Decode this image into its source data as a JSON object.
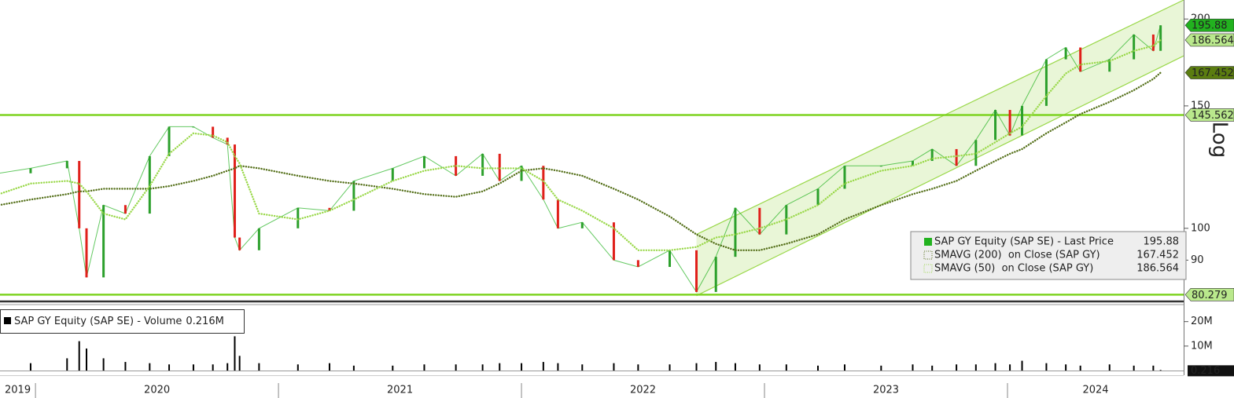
{
  "chart_data": [
    {
      "type": "line",
      "log_scale": true,
      "grid": false,
      "legend": "lower right",
      "x": [
        2019.85,
        2019.98,
        2020.13,
        2020.18,
        2020.21,
        2020.28,
        2020.37,
        2020.47,
        2020.55,
        2020.65,
        2020.73,
        2020.79,
        2020.82,
        2020.84,
        2020.92,
        2021.08,
        2021.21,
        2021.31,
        2021.47,
        2021.6,
        2021.73,
        2021.84,
        2021.91,
        2022.0,
        2022.09,
        2022.15,
        2022.25,
        2022.38,
        2022.48,
        2022.61,
        2022.72,
        2022.8,
        2022.88,
        2022.98,
        2023.09,
        2023.22,
        2023.33,
        2023.48,
        2023.61,
        2023.69,
        2023.79,
        2023.87,
        2023.95,
        2024.01,
        2024.06,
        2024.16,
        2024.24,
        2024.3,
        2024.42,
        2024.52,
        2024.6,
        2024.63
      ],
      "xlim": [
        2019.854,
        2024.725
      ],
      "ylim": [
        78.7,
        213
      ],
      "yticks": [
        90,
        100,
        150,
        200
      ],
      "scale_label": "Log",
      "series": [
        {
          "name": "SAP GY Equity (SAP SE) - Last Price",
          "color": "#22b21f",
          "up_color": "#2ca02c",
          "down_color": "#e0201b",
          "tag_color": "#22b21f",
          "tag_text": "#000000",
          "values": [
            120,
            122,
            125,
            100,
            85,
            108,
            105,
            127,
            140,
            140,
            135,
            132,
            97,
            93,
            100,
            107,
            106,
            117,
            122,
            127,
            119,
            128,
            117,
            123,
            110,
            100,
            102,
            90,
            88,
            93,
            81,
            91,
            107,
            98,
            108,
            114,
            123,
            123,
            125,
            130,
            123,
            134,
            148,
            136,
            150,
            175,
            182,
            168,
            175,
            190,
            180,
            195.88
          ]
        },
        {
          "name": "SMAVG (200)  on Close (SAP GY)",
          "color": "#55701a",
          "style": "dotted",
          "tag_color": "#5b7d10",
          "tag_text": "#ffffff",
          "values": [
            108,
            110,
            112,
            113,
            113,
            114,
            114,
            114,
            115,
            117,
            119,
            121,
            122,
            123,
            122,
            119,
            117,
            116,
            114,
            112,
            111,
            113,
            116,
            121,
            122,
            121,
            119,
            114,
            110,
            104,
            98,
            95,
            93,
            93,
            95,
            98,
            103,
            108,
            112,
            114,
            117,
            121,
            125,
            128,
            130,
            137,
            142,
            146,
            152,
            158,
            164,
            167.452
          ]
        },
        {
          "name": "SMAVG (50)  on Close (SAP GY)",
          "color": "#9ad84a",
          "style": "dotted",
          "tag_color": "#b9e88c",
          "tag_text": "#000000",
          "values": [
            112,
            116,
            117,
            116,
            113,
            105,
            103,
            115,
            128,
            137,
            136,
            133,
            127,
            124,
            105,
            103,
            106,
            110,
            117,
            121,
            123,
            122,
            122,
            122,
            117,
            110,
            106,
            100,
            93,
            93,
            94,
            97,
            98,
            100,
            103,
            108,
            116,
            121,
            123,
            126,
            127,
            128,
            133,
            137,
            140,
            155,
            167,
            172,
            174,
            180,
            183,
            186.564
          ]
        }
      ],
      "hlines": [
        {
          "value": 145.562,
          "color": "#7ed321",
          "tag_color": "#b9e88c"
        },
        {
          "value": 80.279,
          "color": "#7ed321",
          "tag_color": "#b9e88c"
        }
      ],
      "channel": {
        "x": [
          2022.72,
          2024.725
        ],
        "upper": [
          98,
          213
        ],
        "lower": [
          80,
          177
        ],
        "color": "#9ad84a"
      }
    },
    {
      "type": "bar",
      "x": [
        2019.85,
        2019.98,
        2020.13,
        2020.18,
        2020.21,
        2020.28,
        2020.37,
        2020.47,
        2020.55,
        2020.65,
        2020.73,
        2020.79,
        2020.82,
        2020.84,
        2020.92,
        2021.08,
        2021.21,
        2021.31,
        2021.47,
        2021.6,
        2021.73,
        2021.84,
        2021.91,
        2022.0,
        2022.09,
        2022.15,
        2022.25,
        2022.38,
        2022.48,
        2022.61,
        2022.72,
        2022.8,
        2022.88,
        2022.98,
        2023.09,
        2023.22,
        2023.33,
        2023.48,
        2023.61,
        2023.69,
        2023.79,
        2023.87,
        2023.95,
        2024.01,
        2024.06,
        2024.16,
        2024.24,
        2024.3,
        2024.42,
        2024.52,
        2024.6,
        2024.63
      ],
      "xlim": [
        2019.854,
        2024.725
      ],
      "xticks": [
        2019,
        2020,
        2021,
        2022,
        2023,
        2024
      ],
      "ylim": [
        0,
        26000000
      ],
      "yticks": [
        {
          "value": 10000000,
          "label": "10M"
        },
        {
          "value": 20000000,
          "label": "20M"
        }
      ],
      "series": [
        {
          "name": "SAP GY Equity (SAP SE) - Volume",
          "color": "#000000",
          "values": [
            2500000,
            3000000,
            5000000,
            12000000,
            9000000,
            5000000,
            3500000,
            3000000,
            2500000,
            2500000,
            2500000,
            3000000,
            14000000,
            6000000,
            3000000,
            2500000,
            3000000,
            2000000,
            2000000,
            2500000,
            2500000,
            2500000,
            3000000,
            3000000,
            3500000,
            3000000,
            2500000,
            3000000,
            2500000,
            2500000,
            3000000,
            3500000,
            3000000,
            2500000,
            2500000,
            2000000,
            2500000,
            2000000,
            2500000,
            2000000,
            2500000,
            2500000,
            3000000,
            2500000,
            4000000,
            3000000,
            2500000,
            2000000,
            2500000,
            2000000,
            2000000,
            216000
          ],
          "value_labels": [
            null,
            null,
            null,
            null,
            null,
            null,
            null,
            null,
            null,
            null,
            null,
            null,
            null,
            null,
            null,
            null,
            null,
            null,
            null,
            null,
            null,
            null,
            null,
            null,
            null,
            null,
            null,
            null,
            null,
            null,
            null,
            null,
            null,
            null,
            null,
            null,
            null,
            null,
            null,
            null,
            null,
            null,
            null,
            null,
            null,
            null,
            null,
            null,
            null,
            null,
            null,
            "0.216M"
          ]
        }
      ],
      "tag_label": "0.216"
    }
  ]
}
